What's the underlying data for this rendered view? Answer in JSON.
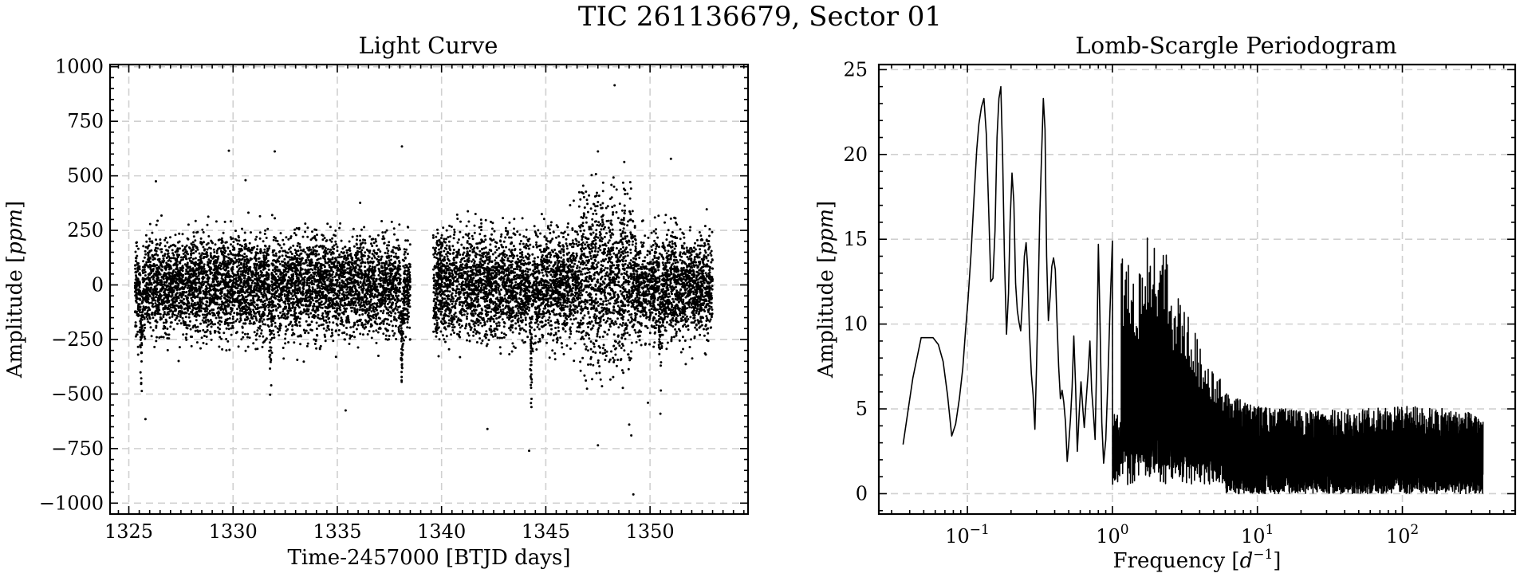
{
  "figure": {
    "title": "TIC 261136679, Sector 01"
  },
  "chart_data": [
    {
      "type": "scatter",
      "title": "Light Curve",
      "xlabel": "Time-2457000 [BTJD days]",
      "ylabel": "Amplitude [ppm]",
      "ylabel_prefix": "Amplitude [",
      "ylabel_unit": "ppm",
      "ylabel_suffix": "]",
      "xlim": [
        1324.1,
        1354.7
      ],
      "ylim": [
        -1050,
        1010
      ],
      "xticks": [
        1325,
        1330,
        1335,
        1340,
        1345,
        1350
      ],
      "xtick_labels": [
        "1325",
        "1330",
        "1335",
        "1340",
        "1345",
        "1350"
      ],
      "yticks": [
        -1000,
        -750,
        -500,
        -250,
        0,
        250,
        500,
        750,
        1000
      ],
      "ytick_labels": [
        "−1000",
        "−750",
        "−500",
        "−250",
        "0",
        "250",
        "500",
        "750",
        "1000"
      ],
      "grid": true,
      "point_color": "#000000",
      "segments": [
        {
          "t_start": 1325.3,
          "t_end": 1338.5,
          "scatter_sigma_ppm": 110
        },
        {
          "t_start": 1339.6,
          "t_end": 1353.0,
          "scatter_sigma_ppm": 120
        }
      ],
      "transit_dips": [
        {
          "t": 1325.6,
          "depth_ppm": -480
        },
        {
          "t": 1331.8,
          "depth_ppm": -500
        },
        {
          "t": 1338.1,
          "depth_ppm": -510
        },
        {
          "t": 1344.3,
          "depth_ppm": -500
        },
        {
          "t": 1350.5,
          "depth_ppm": -450
        }
      ],
      "outliers": [
        {
          "t": 1329.8,
          "y": 615
        },
        {
          "t": 1332.0,
          "y": 612
        },
        {
          "t": 1338.1,
          "y": 635
        },
        {
          "t": 1348.3,
          "y": 915
        },
        {
          "t": 1330.6,
          "y": 480
        },
        {
          "t": 1326.3,
          "y": 475
        },
        {
          "t": 1351.0,
          "y": 578
        },
        {
          "t": 1347.5,
          "y": 612
        },
        {
          "t": 1325.8,
          "y": -615
        },
        {
          "t": 1335.4,
          "y": -575
        },
        {
          "t": 1344.2,
          "y": -760
        },
        {
          "t": 1347.5,
          "y": -735
        },
        {
          "t": 1349.0,
          "y": -640
        },
        {
          "t": 1349.1,
          "y": -690
        },
        {
          "t": 1349.2,
          "y": -960
        },
        {
          "t": 1342.2,
          "y": -660
        },
        {
          "t": 1349.9,
          "y": -540
        }
      ]
    },
    {
      "type": "line",
      "title": "Lomb-Scargle Periodogram",
      "xlabel": "Frequency [d⁻¹]",
      "xlabel_prefix": "Frequency [",
      "xlabel_var": "d",
      "xlabel_exp": "−1",
      "xlabel_suffix": "]",
      "ylabel": "Amplitude [ppm]",
      "ylabel_prefix": "Amplitude [",
      "ylabel_unit": "ppm",
      "ylabel_suffix": "]",
      "xscale": "log",
      "xlim": [
        0.0245,
        600
      ],
      "ylim": [
        -1.2,
        25.3
      ],
      "xticks": [
        0.1,
        1,
        10,
        100
      ],
      "xtick_bases": [
        "10",
        "10",
        "10",
        "10"
      ],
      "xtick_exps": [
        "−1",
        "0",
        "1",
        "2"
      ],
      "yticks": [
        0,
        5,
        10,
        15,
        20,
        25
      ],
      "ytick_labels": [
        "0",
        "5",
        "10",
        "15",
        "20",
        "25"
      ],
      "grid": true,
      "line_color": "#000000",
      "x": [
        0.036,
        0.042,
        0.048,
        0.053,
        0.058,
        0.063,
        0.068,
        0.073,
        0.078,
        0.083,
        0.088,
        0.093,
        0.097,
        0.101,
        0.106,
        0.111,
        0.116,
        0.12,
        0.125,
        0.13,
        0.135,
        0.14,
        0.145,
        0.15,
        0.155,
        0.16,
        0.165,
        0.17,
        0.175,
        0.18,
        0.186,
        0.192,
        0.197,
        0.203,
        0.209,
        0.215,
        0.221,
        0.227,
        0.233,
        0.24,
        0.247,
        0.254,
        0.261,
        0.268,
        0.276,
        0.284,
        0.292,
        0.3,
        0.308,
        0.316,
        0.325,
        0.334,
        0.343,
        0.352,
        0.362,
        0.372,
        0.382,
        0.393,
        0.404,
        0.415,
        0.426,
        0.438,
        0.45,
        0.462,
        0.475,
        0.488,
        0.5,
        0.514,
        0.528,
        0.542,
        0.557,
        0.573,
        0.59,
        0.607,
        0.625,
        0.64,
        0.66,
        0.68,
        0.7,
        0.72,
        0.74,
        0.76,
        0.78,
        0.8,
        0.82,
        0.845,
        0.87,
        0.9,
        0.93,
        0.96,
        1.0
      ],
      "y": [
        2.9,
        6.8,
        9.2,
        9.2,
        9.2,
        8.8,
        7.8,
        5.8,
        3.4,
        4.1,
        5.6,
        7.4,
        9.6,
        11.4,
        14.2,
        17.4,
        20.3,
        21.8,
        22.8,
        23.3,
        21.2,
        17.0,
        12.5,
        12.7,
        15.5,
        21.0,
        23.3,
        24.0,
        20.0,
        14.0,
        9.4,
        11.8,
        16.0,
        18.9,
        17.2,
        12.4,
        10.8,
        10.1,
        9.6,
        11.4,
        14.0,
        14.8,
        13.2,
        9.5,
        7.1,
        5.8,
        3.8,
        7.6,
        12.0,
        16.5,
        20.0,
        23.3,
        21.5,
        14.0,
        10.2,
        11.6,
        13.4,
        13.9,
        13.2,
        10.2,
        7.5,
        5.6,
        6.1,
        5.4,
        4.2,
        1.9,
        2.9,
        4.4,
        6.3,
        9.3,
        6.4,
        2.5,
        4.7,
        6.6,
        5.0,
        3.9,
        5.6,
        7.1,
        9.0,
        6.1,
        4.7,
        3.2,
        8.0,
        14.7,
        10.5,
        4.2,
        1.8,
        3.2,
        6.5,
        10.6,
        14.9
      ],
      "dense_region": {
        "f_start": 1.0,
        "f_end": 360,
        "peaks_ppm": [
          [
            1.15,
            13.8
          ],
          [
            1.3,
            14.6
          ],
          [
            1.45,
            12.3
          ],
          [
            1.6,
            13.6
          ],
          [
            1.8,
            15.7
          ],
          [
            2.0,
            14.1
          ],
          [
            2.3,
            14.8
          ],
          [
            2.6,
            12.0
          ],
          [
            2.9,
            11.8
          ],
          [
            3.3,
            10.6
          ],
          [
            3.7,
            9.6
          ],
          [
            4.2,
            8.2
          ],
          [
            4.8,
            7.4
          ],
          [
            5.5,
            6.8
          ],
          [
            6.5,
            6.0
          ],
          [
            8.0,
            5.5
          ],
          [
            10,
            5.2
          ],
          [
            20,
            4.9
          ],
          [
            50,
            5.0
          ],
          [
            100,
            5.2
          ],
          [
            200,
            5.0
          ],
          [
            360,
            4.7
          ]
        ]
      }
    }
  ]
}
